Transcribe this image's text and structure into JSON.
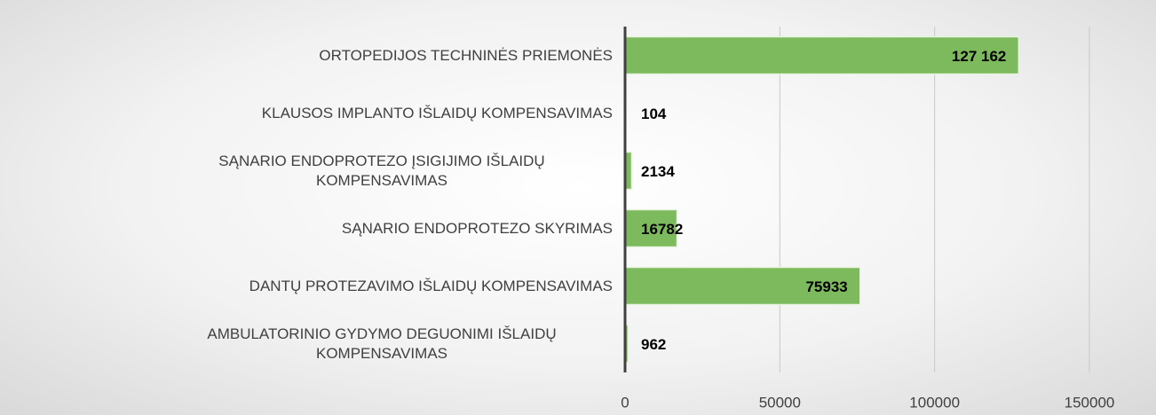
{
  "chart_data": {
    "type": "barh",
    "categories": [
      "ORTOPEDIJOS TECHNINĖS PRIEMONĖS",
      "KLAUSOS IMPLANTO IŠLAIDŲ KOMPENSAVIMAS",
      "SĄNARIO ENDOPROTEZO ĮSIGIJIMO IŠLAIDŲ KOMPENSAVIMAS",
      "SĄNARIO ENDOPROTEZO SKYRIMAS",
      "DANTŲ PROTEZAVIMO IŠLAIDŲ KOMPENSAVIMAS",
      "AMBULATORINIO GYDYMO DEGUONIMI IŠLAIDŲ KOMPENSAVIMAS"
    ],
    "values": [
      127162,
      104,
      2134,
      16782,
      75933,
      962
    ],
    "value_labels": [
      "127 162",
      "104",
      "2134",
      "16782",
      "75933",
      "962"
    ],
    "color": "#7dba5e",
    "xlim": [
      0,
      150000
    ],
    "xticks": [
      0,
      50000,
      100000,
      150000
    ],
    "grid": true
  }
}
